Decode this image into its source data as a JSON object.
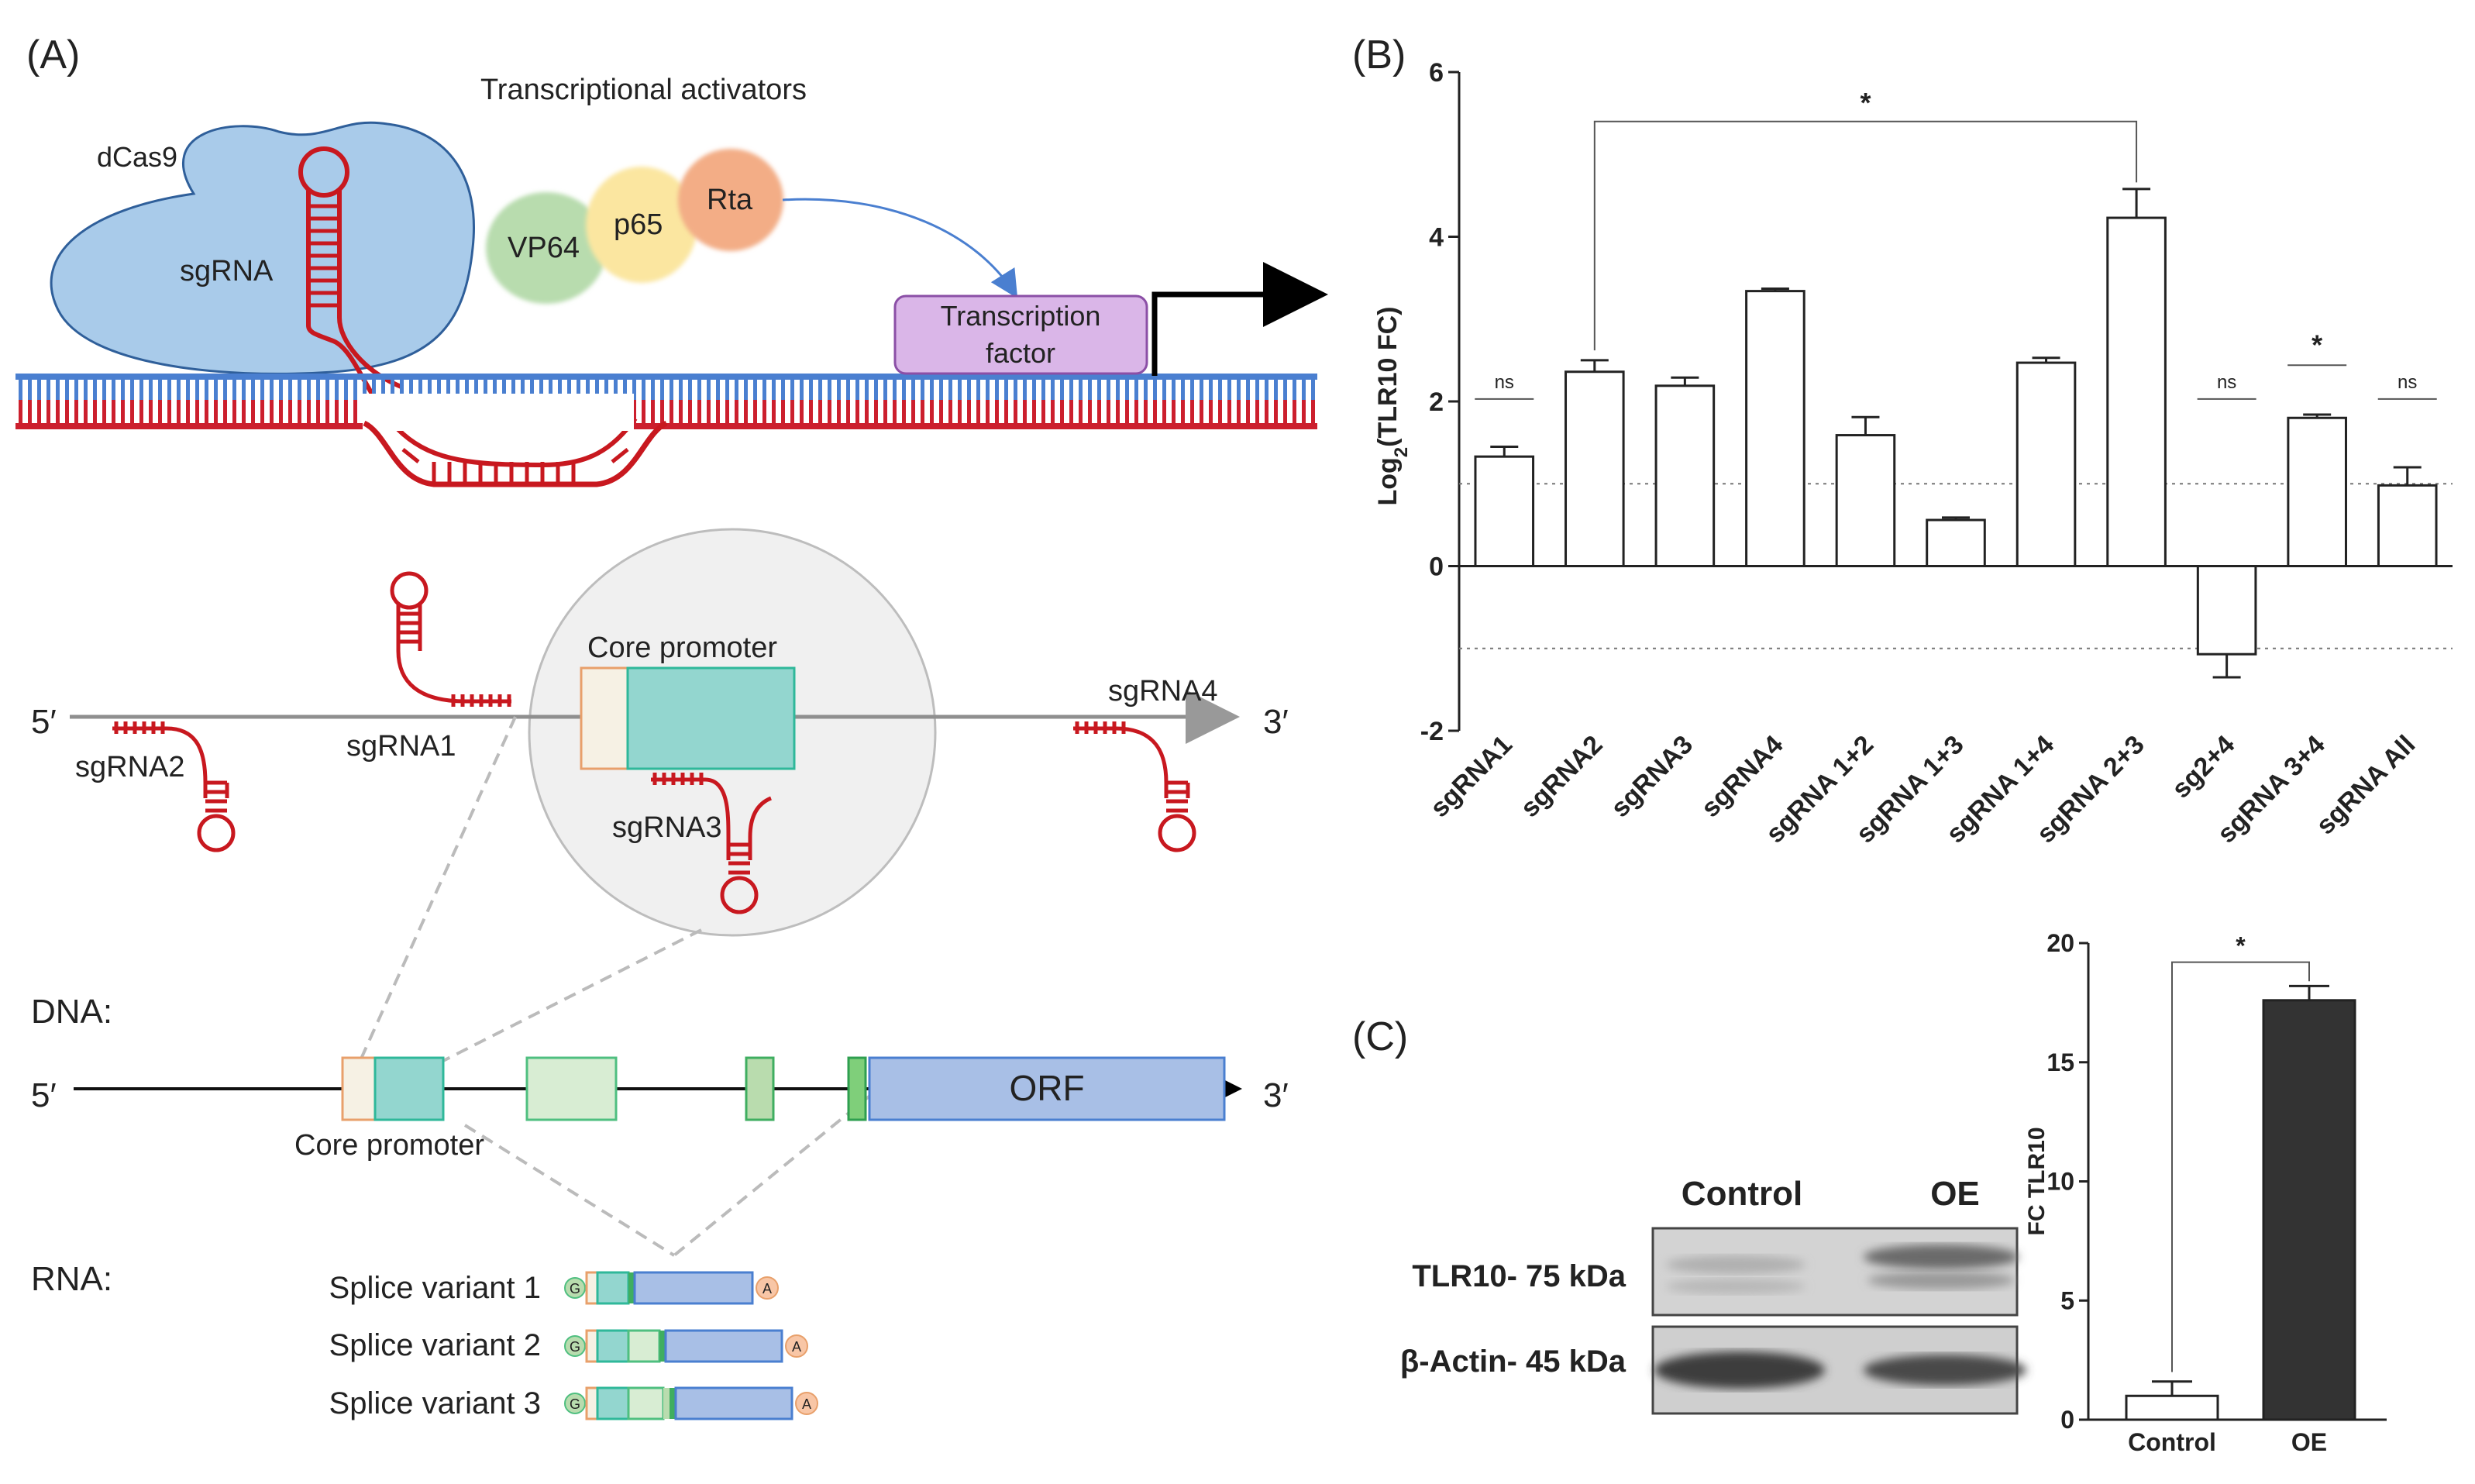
{
  "panels": {
    "a": "(A)",
    "b": "(B)",
    "c": "(C)"
  },
  "panel_a": {
    "activators_title": "Transcriptional activators",
    "dcas9": "dCas9",
    "sgrna": "sgRNA",
    "vp64": "VP64",
    "p65": "p65",
    "rta": "Rta",
    "tf_line1": "Transcription",
    "tf_line2": "factor",
    "core_promoter": "Core promoter",
    "five_prime": "5′",
    "three_prime": "3′",
    "sgrna1": "sgRNA1",
    "sgrna2": "sgRNA2",
    "sgrna3": "sgRNA3",
    "sgrna4": "sgRNA4",
    "dna_label": "DNA:",
    "rna_label": "RNA:",
    "orf": "ORF",
    "core_promoter_dna": "Core promoter",
    "splice1": "Splice variant 1",
    "splice2": "Splice variant 2",
    "splice3": "Splice variant 3",
    "cap": "G",
    "polya": "A"
  },
  "panel_c": {
    "blot_control": "Control",
    "blot_oe": "OE",
    "tlr10_band": "TLR10- 75 kDa",
    "actin_band": "β-Actin- 45 kDa"
  },
  "colors": {
    "dna_top": "#4a7fd0",
    "dna_bottom": "#cc1f2d",
    "sgrna_red": "#c8181f",
    "dcas9_fill": "#9fc3e6",
    "promoter_teal": "#93d6cf",
    "orf_blue": "#a8bfe6",
    "tf_purple": "#d9b3e6",
    "oe_bar": "#333333"
  },
  "chart_data": [
    {
      "type": "bar",
      "panel": "B",
      "title": "",
      "ylabel": "Log2(TLR10 FC)",
      "ylabel_main": "Log",
      "ylabel_sub": "2",
      "ylabel_rest": "(TLR10 FC)",
      "xlabel": "",
      "ylim": [
        -2,
        6
      ],
      "yticks": [
        -2,
        0,
        2,
        4,
        6
      ],
      "reference_lines": [
        1,
        -1
      ],
      "categories": [
        "sgRNA1",
        "sgRNA2",
        "sgRNA3",
        "sgRNA4",
        "sgRNA 1+2",
        "sgRNA 1+3",
        "sgRNA 1+4",
        "sgRNA 2+3",
        "sg2+4",
        "sgRNA 3+4",
        "sgRNA All"
      ],
      "values": [
        1.33,
        2.36,
        2.19,
        3.34,
        1.59,
        0.56,
        2.47,
        4.23,
        -1.07,
        1.8,
        0.98
      ],
      "errors": [
        0.12,
        0.14,
        0.1,
        0.03,
        0.22,
        0.03,
        0.06,
        0.35,
        0.28,
        0.04,
        0.22
      ],
      "annotations": [
        {
          "category": "sgRNA1",
          "text": "ns",
          "y": 2.03
        },
        {
          "category": "sg2+4",
          "text": "ns",
          "y": 2.03
        },
        {
          "category": "sgRNA 3+4",
          "text": "*",
          "y": 2.44
        },
        {
          "category": "sgRNA All",
          "text": "ns",
          "y": 2.03
        }
      ],
      "bracket": {
        "from": "sgRNA2",
        "to": "sgRNA 2+3",
        "text": "*",
        "y": 5.4
      }
    },
    {
      "type": "bar",
      "panel": "C",
      "title": "",
      "ylabel": "FC TLR10",
      "xlabel": "",
      "ylim": [
        0,
        20
      ],
      "yticks": [
        0,
        5,
        10,
        15,
        20
      ],
      "categories": [
        "Control",
        "OE"
      ],
      "values": [
        1.0,
        17.6
      ],
      "errors": [
        0.6,
        0.6
      ],
      "bracket": {
        "from": "Control",
        "to": "OE",
        "text": "*",
        "y": 19.2
      }
    }
  ]
}
